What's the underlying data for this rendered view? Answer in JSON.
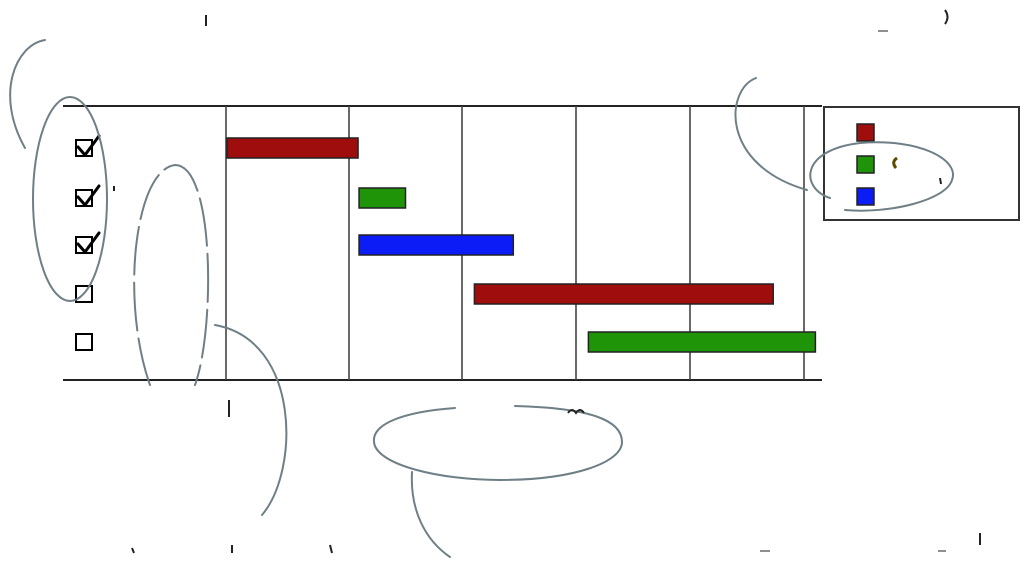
{
  "diagram": {
    "type": "gantt",
    "rows": [
      {
        "checked": true,
        "bar": {
          "start": 0,
          "end": 1.08,
          "color": "#a00d0d"
        }
      },
      {
        "checked": true,
        "bar": {
          "start": 1.08,
          "end": 1.5,
          "color": "#1f9409"
        }
      },
      {
        "checked": true,
        "bar": {
          "start": 1.08,
          "end": 2.45,
          "color": "#0b1cf7"
        }
      },
      {
        "checked": false,
        "bar": {
          "start": 2.1,
          "end": 4.73,
          "color": "#a00d0d"
        }
      },
      {
        "checked": false,
        "bar": {
          "start": 3.1,
          "end": 5.1,
          "color": "#1f9409"
        }
      }
    ],
    "columns": 6,
    "legend": {
      "placement": "top-right",
      "swatches": [
        "#a00d0d",
        "#1f9409",
        "#0b1cf7"
      ]
    },
    "annotations": {
      "style": "hand-drawn ellipses and callout curves",
      "color": "#6e7f86"
    }
  }
}
